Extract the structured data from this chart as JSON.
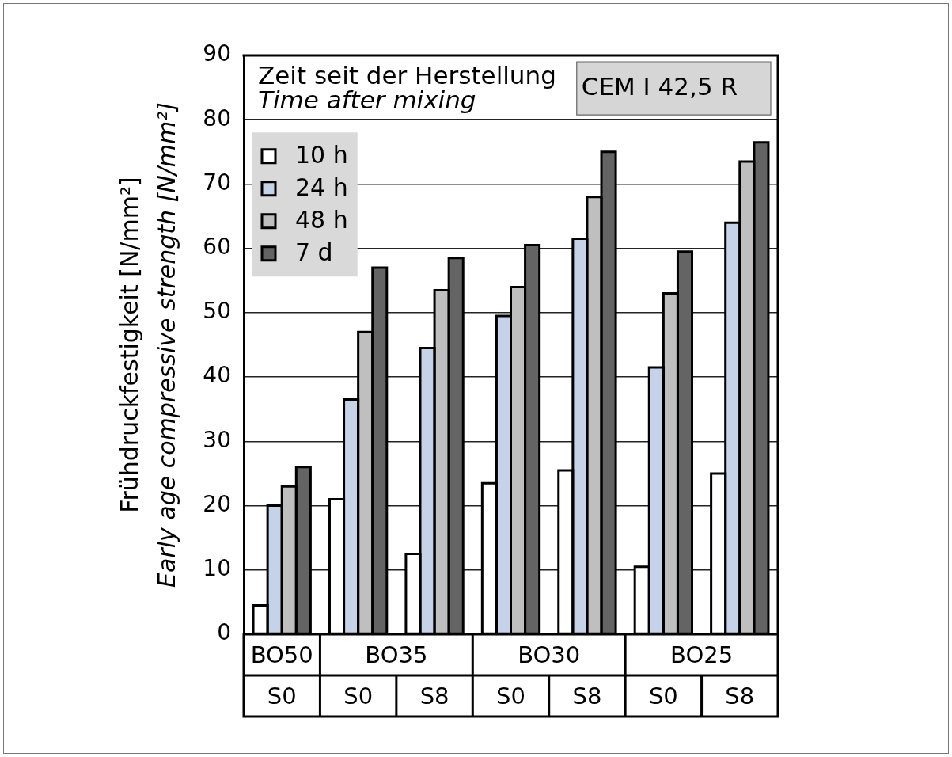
{
  "chart_data": {
    "type": "bar",
    "legend_title": "Zeit seit der Herstellung\nTime after mixing",
    "ylabel": "Frühdruckfestigkeit [N/mm²]\nEarly age compressive strength [N/mm²]",
    "annotations": [
      "CEM I 42,5 R",
      "BO50",
      "BO35",
      "BO30",
      "BO25"
    ],
    "categories": [
      "S0",
      "S0",
      "S8",
      "S0",
      "S8",
      "S0",
      "S8"
    ],
    "series": [
      {
        "name": "10 h",
        "color": "#ffffff",
        "values": [
          4.5,
          21,
          12.5,
          23.5,
          25.5,
          10.5,
          25
        ]
      },
      {
        "name": "24 h",
        "color": "#c6d2e8",
        "values": [
          20,
          36.5,
          44.5,
          49.5,
          61.5,
          41.5,
          64
        ]
      },
      {
        "name": "48 h",
        "color": "#bfbfbf",
        "values": [
          23,
          47,
          53.5,
          54,
          68,
          53,
          73.5
        ]
      },
      {
        "name": "7 d",
        "color": "#646464",
        "values": [
          26,
          57,
          58.5,
          60.5,
          75,
          59.5,
          76.5
        ]
      }
    ],
    "ylim": [
      0,
      90
    ],
    "yticks": [
      0,
      10,
      20,
      30,
      40,
      50,
      60,
      70,
      80,
      90
    ],
    "grid": "y",
    "legend": "top left"
  }
}
